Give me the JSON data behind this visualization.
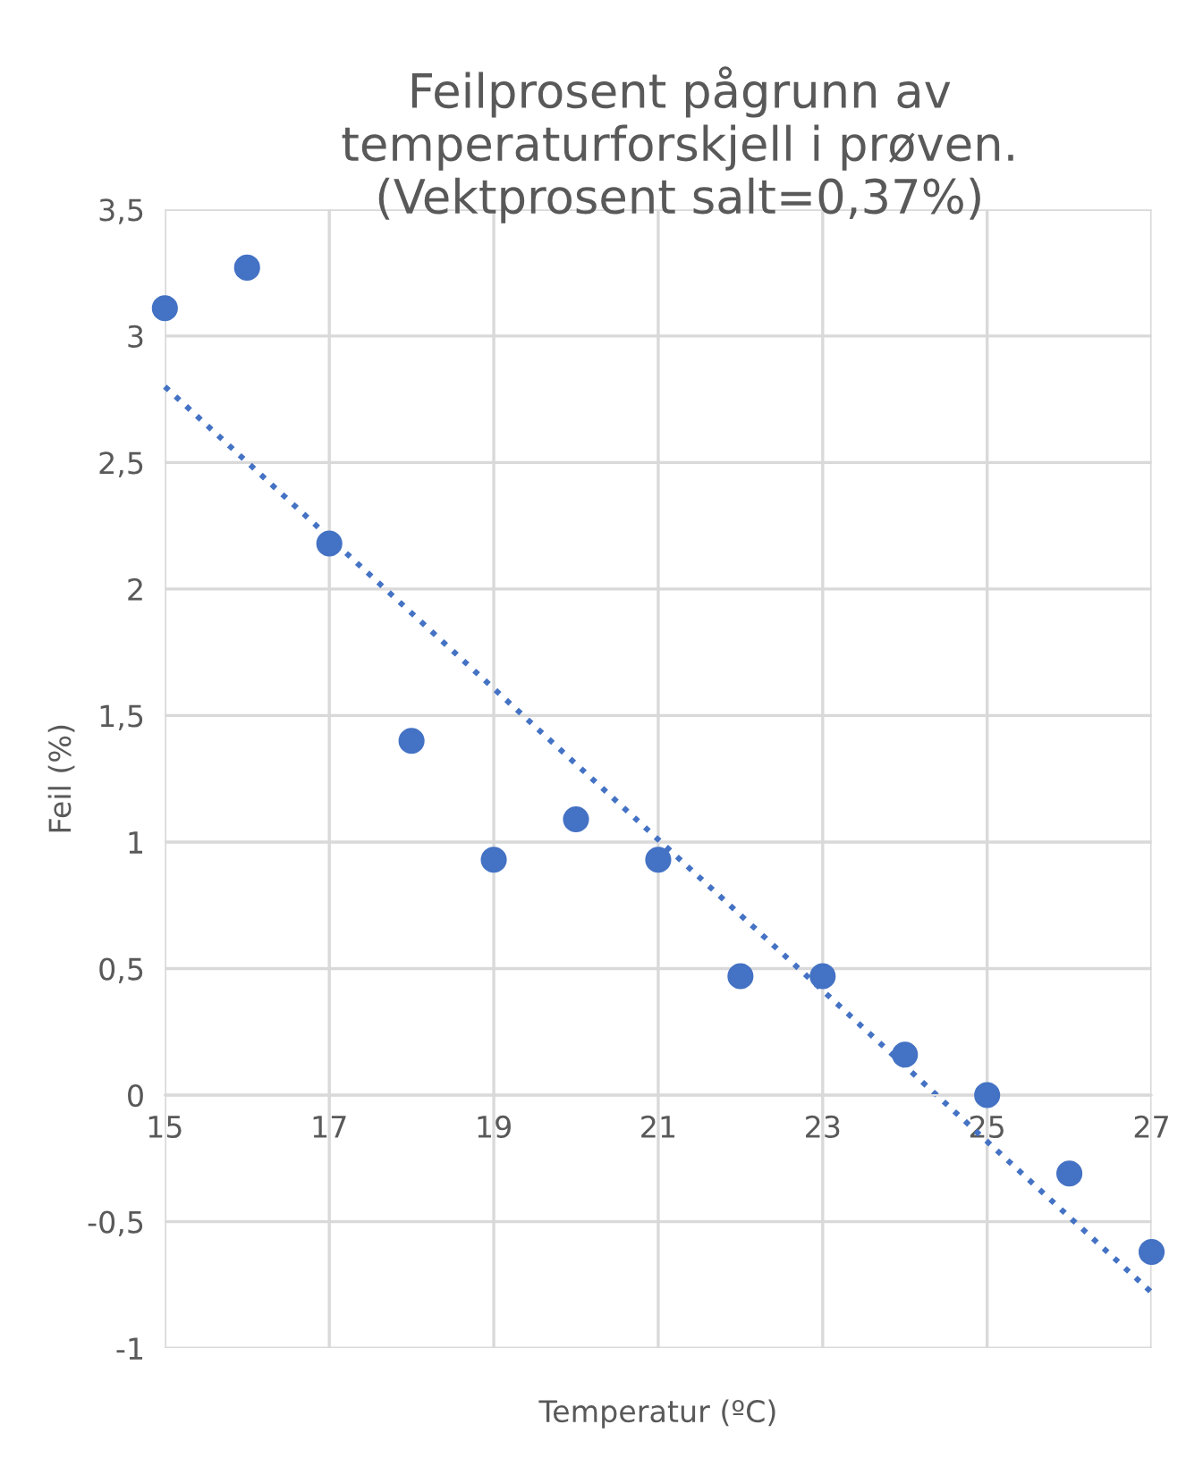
{
  "chart_data": {
    "type": "scatter",
    "title": "Feilprosent pågrunn av\ntemperaturforskjell i prøven.\n(Vektprosent salt=0,37%)",
    "xlabel": "Temperatur (ºC)",
    "ylabel": "Feil (%)",
    "x": [
      15,
      16,
      17,
      18,
      19,
      20,
      21,
      22,
      23,
      24,
      25,
      26,
      27
    ],
    "series": [
      {
        "color": "#4472c4",
        "marker": "circle",
        "values": [
          3.11,
          3.27,
          2.18,
          1.4,
          0.93,
          1.09,
          0.93,
          0.47,
          0.47,
          0.16,
          0,
          -0.31,
          -0.62
        ]
      },
      {
        "type": "line",
        "color": "#4472c4",
        "line_style": "dotted",
        "marker": "none",
        "x": [
          15,
          27
        ],
        "values": [
          2.8,
          -0.78
        ]
      }
    ],
    "xlim": [
      15,
      27
    ],
    "ylim": [
      -1,
      3.5
    ],
    "xticks": [
      15,
      17,
      19,
      21,
      23,
      25,
      27
    ],
    "yticks": [
      {
        "value": -1,
        "label": "-1"
      },
      {
        "value": -0.5,
        "label": "-0,5"
      },
      {
        "value": 0,
        "label": "0"
      },
      {
        "value": 0.5,
        "label": "0,5"
      },
      {
        "value": 1,
        "label": "1"
      },
      {
        "value": 1.5,
        "label": "1,5"
      },
      {
        "value": 2,
        "label": "2"
      },
      {
        "value": 2.5,
        "label": "2,5"
      },
      {
        "value": 3,
        "label": "3"
      },
      {
        "value": 3.5,
        "label": "3,5"
      }
    ],
    "grid": true,
    "legend": false
  }
}
